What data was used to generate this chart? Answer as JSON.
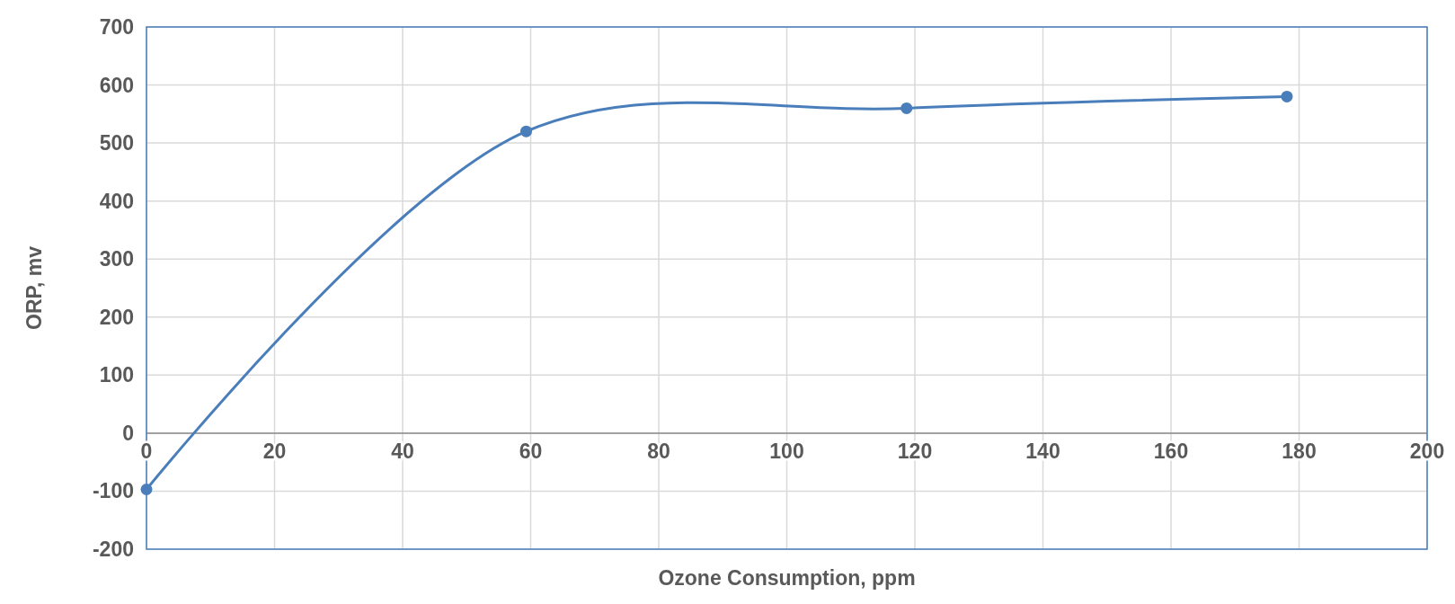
{
  "chart_data": {
    "type": "line",
    "xlabel": "Ozone Consumption, ppm",
    "ylabel": "ORP, mv",
    "x": [
      0,
      59.3,
      118.7,
      178.1
    ],
    "series": [
      {
        "color": "#4a7ebb",
        "values": [
          -97,
          520,
          560,
          580
        ]
      }
    ],
    "xlim": [
      0,
      200
    ],
    "xticks": [
      0,
      20,
      40,
      60,
      80,
      100,
      120,
      140,
      160,
      180,
      200
    ],
    "ylim": [
      -200,
      700
    ],
    "yticks": [
      -200,
      -100,
      0,
      100,
      200,
      300,
      400,
      500,
      600,
      700
    ],
    "grid": true,
    "marker": "circle",
    "line_style": "solid"
  }
}
